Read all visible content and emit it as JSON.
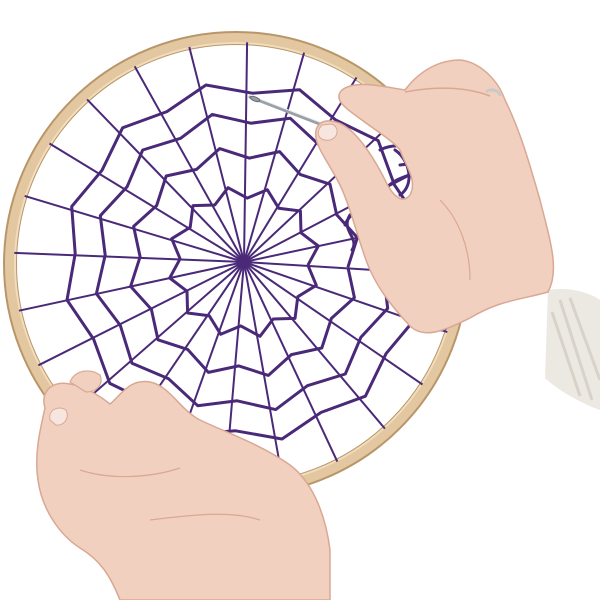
{
  "image": {
    "colors": {
      "background": "#ffffff",
      "hoop_wood": "#e2c7a0",
      "hoop_wood_dark": "#b9966a",
      "yarn": "#4a2a78",
      "yarn_light": "#6a45a0",
      "skin": "#f2d0c0",
      "skin_shadow": "#d9a893",
      "nail": "#f7e6df",
      "sweater": "#ece8e2",
      "needle": "#9aa0a6",
      "ring": "#c9c9c9"
    },
    "spoke_count": 24,
    "web_rounds": 4
  }
}
